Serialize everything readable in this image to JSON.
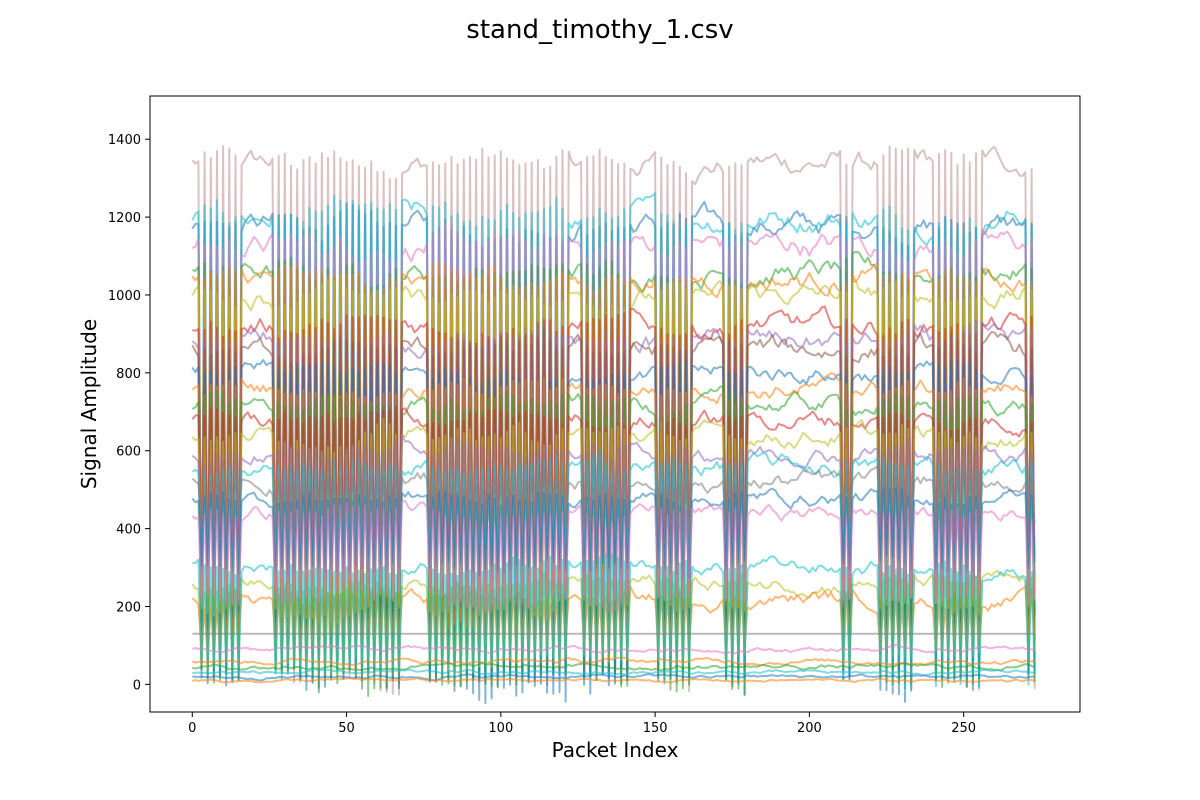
{
  "chart_data": {
    "type": "line",
    "title": "stand_timothy_1.csv",
    "xlabel": "Packet Index",
    "ylabel": "Signal Amplitude",
    "xlim": [
      -13.7,
      287.7
    ],
    "ylim": [
      -71,
      1511
    ],
    "xticks": [
      0,
      50,
      100,
      150,
      200,
      250
    ],
    "yticks": [
      0,
      200,
      400,
      600,
      800,
      1000,
      1200,
      1400
    ],
    "grid": false,
    "legend": "none",
    "n_points": 274,
    "bursts": [
      [
        2,
        15
      ],
      [
        26,
        67
      ],
      [
        76,
        122
      ],
      [
        127,
        141
      ],
      [
        151,
        162
      ],
      [
        173,
        179
      ],
      [
        210,
        214
      ],
      [
        222,
        234
      ],
      [
        240,
        255
      ],
      [
        271,
        273
      ]
    ],
    "series": [
      {
        "color": "#bc8f8f",
        "base": 1340,
        "burst_low": 20,
        "noise": 40
      },
      {
        "color": "#1f77b4",
        "base": 1180,
        "burst_low": 10,
        "noise": 40
      },
      {
        "color": "#17becf",
        "base": 1200,
        "burst_low": 30,
        "noise": 40
      },
      {
        "color": "#e377c2",
        "base": 1130,
        "burst_low": 60,
        "noise": 40
      },
      {
        "color": "#2ca02c",
        "base": 1060,
        "burst_low": 15,
        "noise": 35
      },
      {
        "color": "#ff7f0e",
        "base": 1040,
        "burst_low": 180,
        "noise": 35
      },
      {
        "color": "#bcbd22",
        "base": 1000,
        "burst_low": 200,
        "noise": 35
      },
      {
        "color": "#d62728",
        "base": 920,
        "burst_low": 150,
        "noise": 35
      },
      {
        "color": "#9467bd",
        "base": 880,
        "burst_low": 300,
        "noise": 35
      },
      {
        "color": "#8c564b",
        "base": 860,
        "burst_low": 100,
        "noise": 35
      },
      {
        "color": "#1f77b4",
        "base": 800,
        "burst_low": 40,
        "noise": 30
      },
      {
        "color": "#ff7f0e",
        "base": 760,
        "burst_low": 230,
        "noise": 30
      },
      {
        "color": "#2ca02c",
        "base": 720,
        "burst_low": 80,
        "noise": 30
      },
      {
        "color": "#d62728",
        "base": 680,
        "burst_low": 250,
        "noise": 30
      },
      {
        "color": "#bcbd22",
        "base": 640,
        "burst_low": 200,
        "noise": 30
      },
      {
        "color": "#9467bd",
        "base": 600,
        "burst_low": 340,
        "noise": 30
      },
      {
        "color": "#17becf",
        "base": 560,
        "burst_low": 280,
        "noise": 30
      },
      {
        "color": "#7f7f7f",
        "base": 520,
        "burst_low": 400,
        "noise": 30
      },
      {
        "color": "#1f77b4",
        "base": 480,
        "burst_low": 300,
        "noise": 25
      },
      {
        "color": "#e377c2",
        "base": 440,
        "burst_low": 220,
        "noise": 25
      },
      {
        "color": "#bcbd22",
        "base": 260,
        "burst_low": 60,
        "noise": 25
      },
      {
        "color": "#ff7f0e",
        "base": 220,
        "burst_low": 120,
        "noise": 25
      },
      {
        "color": "#17becf",
        "base": 300,
        "burst_low": 50,
        "noise": 25
      },
      {
        "color": "#7f7f7f",
        "base": 130,
        "burst_low": 130,
        "noise": 0
      },
      {
        "color": "#ff7f0e",
        "base": 60,
        "burst_low": 60,
        "noise": 8
      },
      {
        "color": "#2ca02c",
        "base": 45,
        "burst_low": 45,
        "noise": 8
      },
      {
        "color": "#1f77b4",
        "base": 20,
        "burst_low": 20,
        "noise": 6
      },
      {
        "color": "#17becf",
        "base": 30,
        "burst_low": 30,
        "noise": 6
      },
      {
        "color": "#e377c2",
        "base": 90,
        "burst_low": 90,
        "noise": 8
      },
      {
        "color": "#ff7f0e",
        "base": 10,
        "burst_low": 10,
        "noise": 5
      }
    ]
  }
}
